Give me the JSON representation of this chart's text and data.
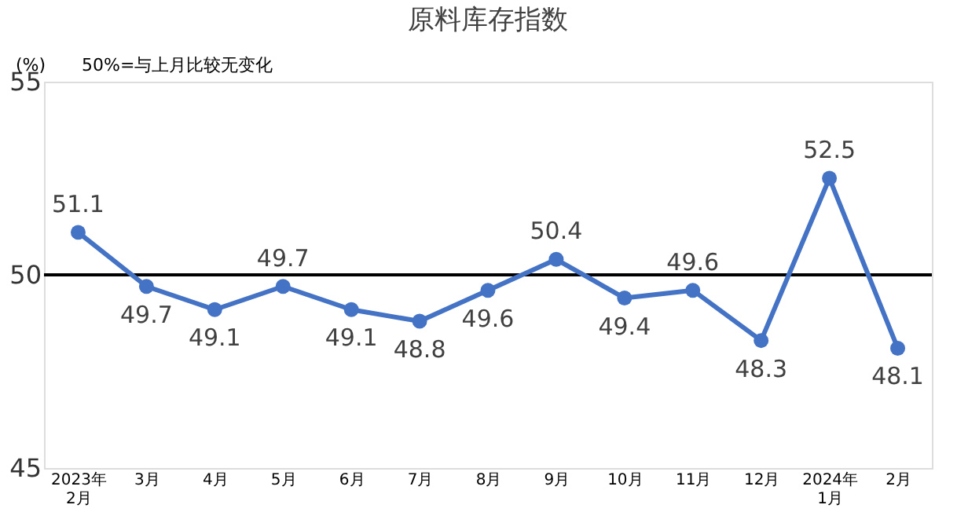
{
  "chart_data": {
    "type": "line",
    "title": "原料库存指数",
    "categories": [
      "2023年\n2月",
      "3月",
      "4月",
      "5月",
      "6月",
      "7月",
      "8月",
      "9月",
      "10月",
      "11月",
      "12月",
      "2024年\n1月",
      "2月"
    ],
    "series": [
      {
        "color": "#4472c4",
        "values": [
          51.1,
          49.7,
          49.1,
          49.7,
          49.1,
          48.8,
          49.6,
          50.4,
          49.4,
          49.6,
          48.3,
          52.5,
          48.1
        ]
      }
    ],
    "ylim": [
      45,
      55
    ],
    "yticks": [
      45,
      50,
      55
    ],
    "grid": false,
    "legend": false,
    "marker": "circle",
    "line_style": "solid",
    "data_labels": true,
    "ref_lines": [
      {
        "axis": "y",
        "value": 50,
        "label": null,
        "color": "#000000"
      }
    ],
    "annotations": [
      "(%)",
      "50%=与上月比较无变化"
    ]
  }
}
